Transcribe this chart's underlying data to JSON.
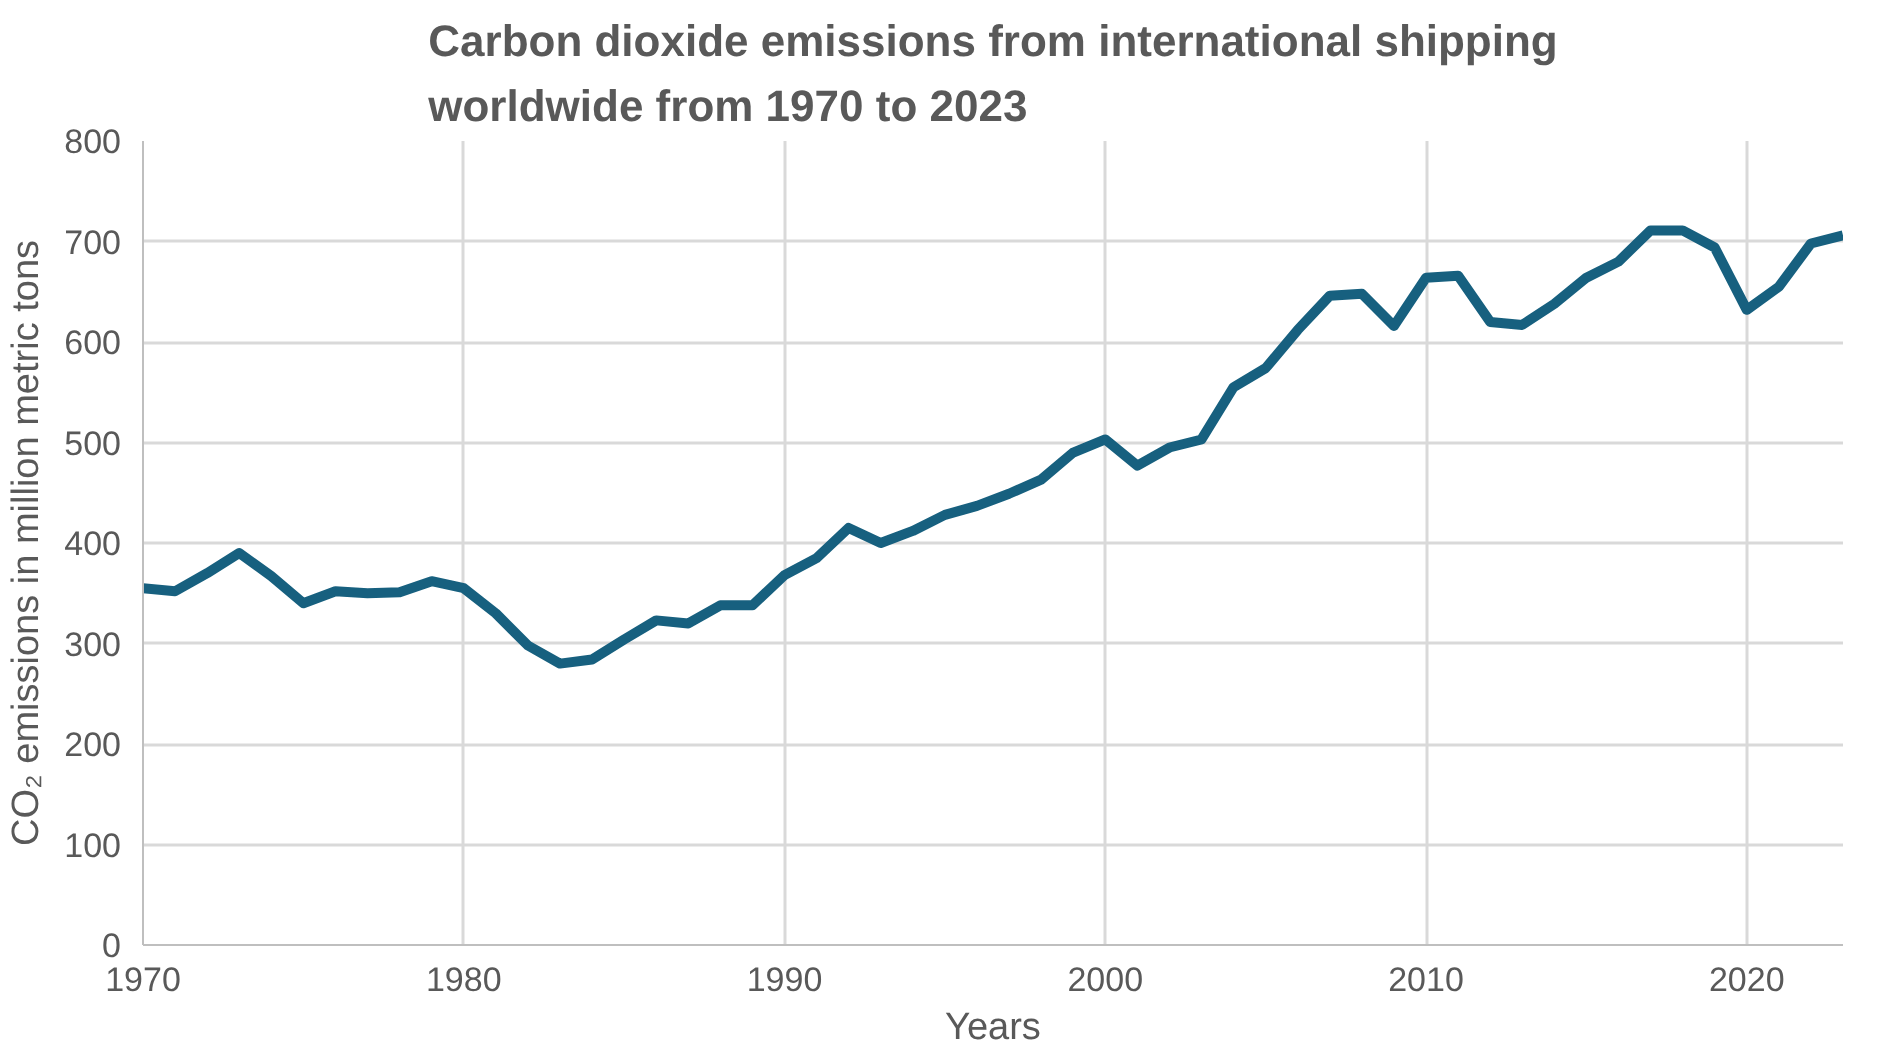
{
  "chart_data": {
    "type": "line",
    "title": "Carbon dioxide emissions from international shipping\nworldwide from 1970 to 2023",
    "xlabel": "Years",
    "ylabel": "CO₂ emissions in million metric tons",
    "x": [
      1970,
      1971,
      1972,
      1973,
      1974,
      1975,
      1976,
      1977,
      1978,
      1979,
      1980,
      1981,
      1982,
      1983,
      1984,
      1985,
      1986,
      1987,
      1988,
      1989,
      1990,
      1991,
      1992,
      1993,
      1994,
      1995,
      1996,
      1997,
      1998,
      1999,
      2000,
      2001,
      2002,
      2003,
      2004,
      2005,
      2006,
      2007,
      2008,
      2009,
      2010,
      2011,
      2012,
      2013,
      2014,
      2015,
      2016,
      2017,
      2018,
      2019,
      2020,
      2021,
      2022,
      2023
    ],
    "series": [
      {
        "color": "#17607f",
        "values": [
          355,
          352,
          370,
          390,
          367,
          340,
          352,
          350,
          351,
          362,
          355,
          330,
          298,
          280,
          284,
          304,
          323,
          320,
          338,
          338,
          368,
          385,
          415,
          400,
          412,
          428,
          437,
          449,
          463,
          490,
          503,
          477,
          495,
          503,
          555,
          574,
          612,
          646,
          648,
          616,
          664,
          666,
          620,
          617,
          638,
          664,
          680,
          711,
          711,
          694,
          632,
          655,
          698,
          706
        ]
      }
    ],
    "xlim": [
      1970,
      2023
    ],
    "xticks": [
      1970,
      1980,
      1990,
      2000,
      2010,
      2020
    ],
    "ylim": [
      0,
      800
    ],
    "yticks": [
      0,
      100,
      200,
      300,
      400,
      500,
      600,
      700,
      800
    ],
    "grid": true,
    "marker": "none",
    "line_style": "solid"
  }
}
